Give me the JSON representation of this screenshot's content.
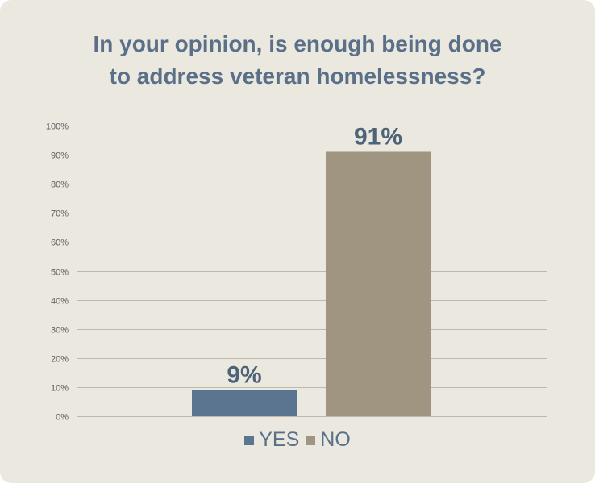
{
  "chart_data": {
    "type": "bar",
    "title_lines": [
      "In your opinion, is enough being done",
      "to address veteran homelessness?"
    ],
    "categories": [
      "YES",
      "NO"
    ],
    "values": [
      9,
      91
    ],
    "data_labels": [
      "9%",
      "91%"
    ],
    "colors": [
      "#5b7590",
      "#a09580"
    ],
    "ylim": [
      0,
      100
    ],
    "yticks": [
      0,
      10,
      20,
      30,
      40,
      50,
      60,
      70,
      80,
      90,
      100
    ],
    "ytick_labels": [
      "0%",
      "10%",
      "20%",
      "30%",
      "40%",
      "50%",
      "60%",
      "70%",
      "80%",
      "90%",
      "100%"
    ],
    "grid": true,
    "legend_position": "bottom",
    "legend": [
      {
        "label": "YES",
        "color": "#5b7590"
      },
      {
        "label": "NO",
        "color": "#a09580"
      }
    ]
  }
}
